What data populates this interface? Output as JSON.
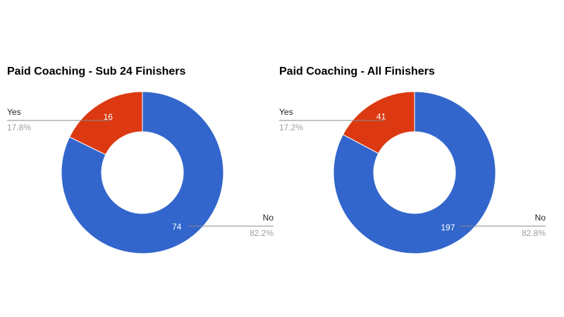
{
  "chart_data": [
    {
      "type": "pie",
      "title": "Paid Coaching - Sub 24 Finishers",
      "categories": [
        "Yes",
        "No"
      ],
      "values": [
        16,
        74
      ],
      "percent_labels": [
        "17.8%",
        "82.2%"
      ],
      "colors": [
        "#dc3912",
        "#3366cc"
      ]
    },
    {
      "type": "pie",
      "title": "Paid Coaching - All Finishers",
      "categories": [
        "Yes",
        "No"
      ],
      "values": [
        41,
        197
      ],
      "percent_labels": [
        "17.2%",
        "82.8%"
      ],
      "colors": [
        "#dc3912",
        "#3366cc"
      ]
    }
  ]
}
